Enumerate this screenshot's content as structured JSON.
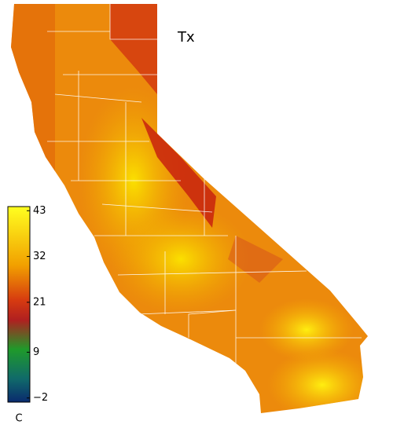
{
  "title": "Tx",
  "colorbar": {
    "lim": [
      -3,
      44
    ],
    "ticks": [
      43,
      32,
      21,
      9,
      {
        "value": -2,
        "label": "−2"
      }
    ],
    "unit": "C"
  }
}
